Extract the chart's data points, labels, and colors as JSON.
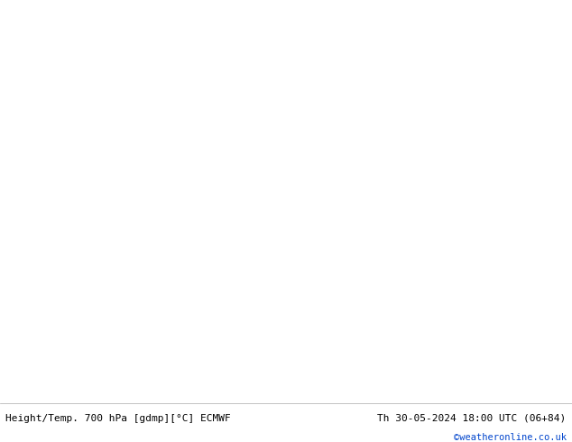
{
  "title_left": "Height/Temp. 700 hPa [gdmp][°C] ECMWF",
  "title_right": "Th 30-05-2024 18:00 UTC (06+84)",
  "credit": "©weatheronline.co.uk",
  "land_color_green": "#c8e8a0",
  "land_color_gray": "#d4d0c8",
  "ocean_color": "#dcdcd4",
  "contour_black": "#000000",
  "contour_pink": "#d4006a",
  "contour_red": "#cc0000",
  "contour_orange": "#e08020",
  "contour_lgreen": "#88bb00",
  "border_color": "#a0a090",
  "bottom_bg": "#ffffff",
  "lw_black": 1.8,
  "lw_pink": 1.6,
  "lw_red": 1.2,
  "lw_orange": 1.1,
  "lw_lgreen": 1.0,
  "font_mono": "DejaVu Sans Mono",
  "font_size_title": 8,
  "font_size_label_black": 7.5,
  "font_size_label_color": 6.5
}
